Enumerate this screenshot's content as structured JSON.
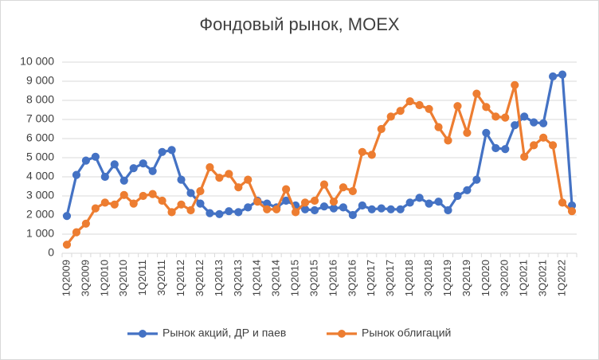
{
  "chart_data": {
    "type": "line",
    "title": "Фондовый рынок, MOEX",
    "xlabel": "",
    "ylabel": "",
    "ylim": [
      0,
      10000
    ],
    "yticks": [
      0,
      1000,
      2000,
      3000,
      4000,
      5000,
      6000,
      7000,
      8000,
      9000,
      10000
    ],
    "ytick_labels": [
      "0",
      "1 000",
      "2 000",
      "3 000",
      "4 000",
      "5 000",
      "6 000",
      "7 000",
      "8 000",
      "9 000",
      "10 000"
    ],
    "grid": true,
    "legend_position": "bottom",
    "x": [
      "1Q2009",
      "2Q2009",
      "3Q2009",
      "4Q2009",
      "1Q2010",
      "2Q2010",
      "3Q2010",
      "4Q2010",
      "1Q2011",
      "2Q2011",
      "3Q2011",
      "4Q2011",
      "1Q2012",
      "2Q2012",
      "3Q2012",
      "4Q2012",
      "1Q2013",
      "2Q2013",
      "3Q2013",
      "4Q2013",
      "1Q2014",
      "2Q2014",
      "3Q2014",
      "4Q2014",
      "1Q2015",
      "2Q2015",
      "3Q2015",
      "4Q2015",
      "1Q2016",
      "2Q2016",
      "3Q2016",
      "4Q2016",
      "1Q2017",
      "2Q2017",
      "3Q2017",
      "4Q2017",
      "1Q2018",
      "2Q2018",
      "3Q2018",
      "4Q2018",
      "1Q2019",
      "2Q2019",
      "3Q2019",
      "4Q2019",
      "1Q2020",
      "2Q2020",
      "3Q2020",
      "4Q2020",
      "1Q2021",
      "2Q2021",
      "3Q2021",
      "4Q2021",
      "1Q2022",
      "2Q2022"
    ],
    "x_tick_labels": [
      "1Q2009",
      "3Q2009",
      "1Q2010",
      "3Q2010",
      "1Q2011",
      "3Q2011",
      "1Q2012",
      "3Q2012",
      "1Q2013",
      "3Q2013",
      "1Q2014",
      "3Q2014",
      "1Q2015",
      "3Q2015",
      "1Q2016",
      "3Q2016",
      "1Q2017",
      "3Q2017",
      "1Q2018",
      "3Q2018",
      "1Q2019",
      "3Q2019",
      "1Q2020",
      "3Q2020",
      "1Q2021",
      "3Q2021",
      "1Q2022"
    ],
    "series": [
      {
        "name": "Рынок акций, ДР и паев",
        "color": "#4472C4",
        "values": [
          1950,
          4100,
          4850,
          5050,
          4000,
          4650,
          3800,
          4450,
          4700,
          4300,
          5300,
          5400,
          3850,
          3150,
          2600,
          2100,
          2050,
          2200,
          2150,
          2400,
          2750,
          2600,
          2400,
          2750,
          2500,
          2300,
          2250,
          2450,
          2350,
          2400,
          2000,
          2500,
          2300,
          2350,
          2300,
          2300,
          2650,
          2900,
          2600,
          2700,
          2250,
          3000,
          3300,
          3850,
          6300,
          5500,
          5450,
          6700,
          7150,
          6850,
          6800,
          9250,
          9350,
          2500
        ]
      },
      {
        "name": "Рынок облигаций",
        "color": "#ED7D31",
        "values": [
          450,
          1100,
          1550,
          2350,
          2650,
          2550,
          3050,
          2600,
          3000,
          3100,
          2750,
          2150,
          2550,
          2250,
          3250,
          4500,
          3950,
          4150,
          3450,
          3850,
          2700,
          2300,
          2300,
          3350,
          2150,
          2650,
          2750,
          3600,
          2700,
          3450,
          3250,
          5300,
          5150,
          6500,
          7150,
          7450,
          7950,
          7750,
          7550,
          6600,
          5900,
          7700,
          6300,
          8350,
          7650,
          7150,
          7100,
          8800,
          5050,
          5650,
          6050,
          5650,
          2650,
          2200
        ]
      }
    ]
  }
}
